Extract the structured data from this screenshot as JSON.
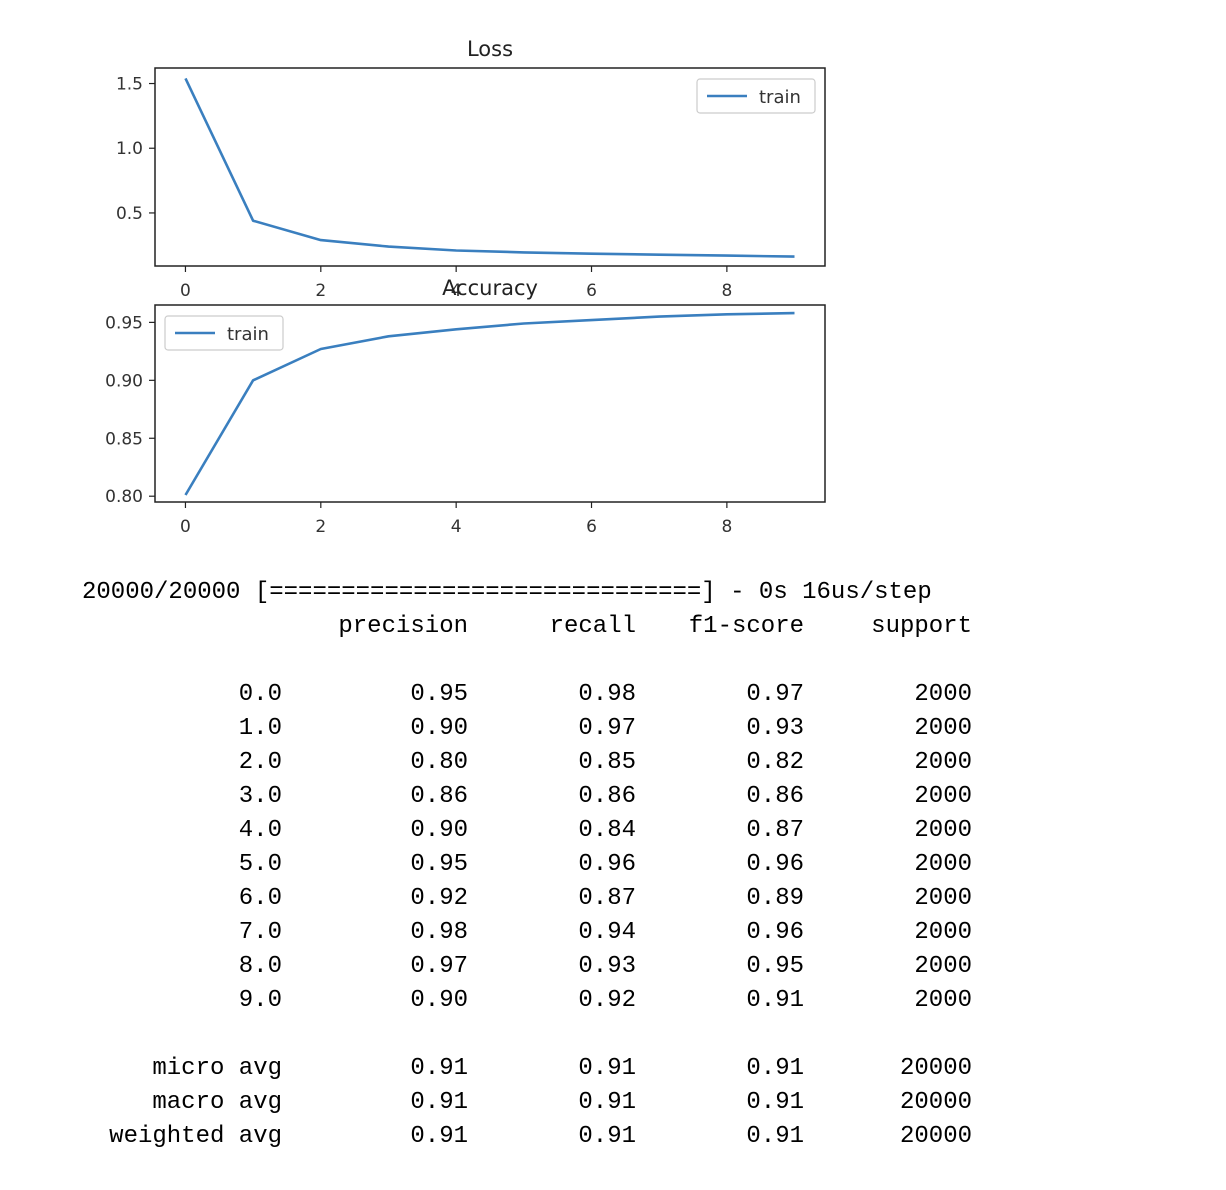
{
  "chart_data": [
    {
      "type": "line",
      "title": "Loss",
      "xlabel": "",
      "ylabel": "",
      "x": [
        0,
        1,
        2,
        3,
        4,
        5,
        6,
        7,
        8,
        9
      ],
      "series": [
        {
          "name": "train",
          "values": [
            1.54,
            0.44,
            0.29,
            0.24,
            0.21,
            0.195,
            0.185,
            0.177,
            0.17,
            0.163
          ],
          "color": "#3a7fbf"
        }
      ],
      "xticks": [
        "0",
        "2",
        "4",
        "6",
        "8"
      ],
      "xtick_values": [
        0,
        2,
        4,
        6,
        8
      ],
      "yticks": [
        "0.5",
        "1.0",
        "1.5"
      ],
      "ytick_values": [
        0.5,
        1.0,
        1.5
      ],
      "xlim": [
        -0.45,
        9.45
      ],
      "ylim": [
        0.09,
        1.62
      ],
      "legend": "upper right",
      "grid": false
    },
    {
      "type": "line",
      "title": "Accuracy",
      "xlabel": "",
      "ylabel": "",
      "x": [
        0,
        1,
        2,
        3,
        4,
        5,
        6,
        7,
        8,
        9
      ],
      "series": [
        {
          "name": "train",
          "values": [
            0.801,
            0.9,
            0.927,
            0.938,
            0.944,
            0.949,
            0.952,
            0.955,
            0.957,
            0.958
          ],
          "color": "#3a7fbf"
        }
      ],
      "xticks": [
        "0",
        "2",
        "4",
        "6",
        "8"
      ],
      "xtick_values": [
        0,
        2,
        4,
        6,
        8
      ],
      "yticks": [
        "0.80",
        "0.85",
        "0.90",
        "0.95"
      ],
      "ytick_values": [
        0.8,
        0.85,
        0.9,
        0.95
      ],
      "xlim": [
        -0.45,
        9.45
      ],
      "ylim": [
        0.795,
        0.965
      ],
      "legend": "upper left",
      "grid": false
    }
  ],
  "report": {
    "progress_line": "20000/20000 [==============================] - 0s 16us/step",
    "headers": [
      "precision",
      "recall",
      "f1-score",
      "support"
    ],
    "rows": [
      {
        "label": "0.0",
        "values": [
          "0.95",
          "0.98",
          "0.97",
          "2000"
        ]
      },
      {
        "label": "1.0",
        "values": [
          "0.90",
          "0.97",
          "0.93",
          "2000"
        ]
      },
      {
        "label": "2.0",
        "values": [
          "0.80",
          "0.85",
          "0.82",
          "2000"
        ]
      },
      {
        "label": "3.0",
        "values": [
          "0.86",
          "0.86",
          "0.86",
          "2000"
        ]
      },
      {
        "label": "4.0",
        "values": [
          "0.90",
          "0.84",
          "0.87",
          "2000"
        ]
      },
      {
        "label": "5.0",
        "values": [
          "0.95",
          "0.96",
          "0.96",
          "2000"
        ]
      },
      {
        "label": "6.0",
        "values": [
          "0.92",
          "0.87",
          "0.89",
          "2000"
        ]
      },
      {
        "label": "7.0",
        "values": [
          "0.98",
          "0.94",
          "0.96",
          "2000"
        ]
      },
      {
        "label": "8.0",
        "values": [
          "0.97",
          "0.93",
          "0.95",
          "2000"
        ]
      },
      {
        "label": "9.0",
        "values": [
          "0.90",
          "0.92",
          "0.91",
          "2000"
        ]
      }
    ],
    "averages": [
      {
        "label": "micro avg",
        "values": [
          "0.91",
          "0.91",
          "0.91",
          "20000"
        ]
      },
      {
        "label": "macro avg",
        "values": [
          "0.91",
          "0.91",
          "0.91",
          "20000"
        ]
      },
      {
        "label": "weighted avg",
        "values": [
          "0.91",
          "0.91",
          "0.91",
          "20000"
        ]
      }
    ]
  }
}
